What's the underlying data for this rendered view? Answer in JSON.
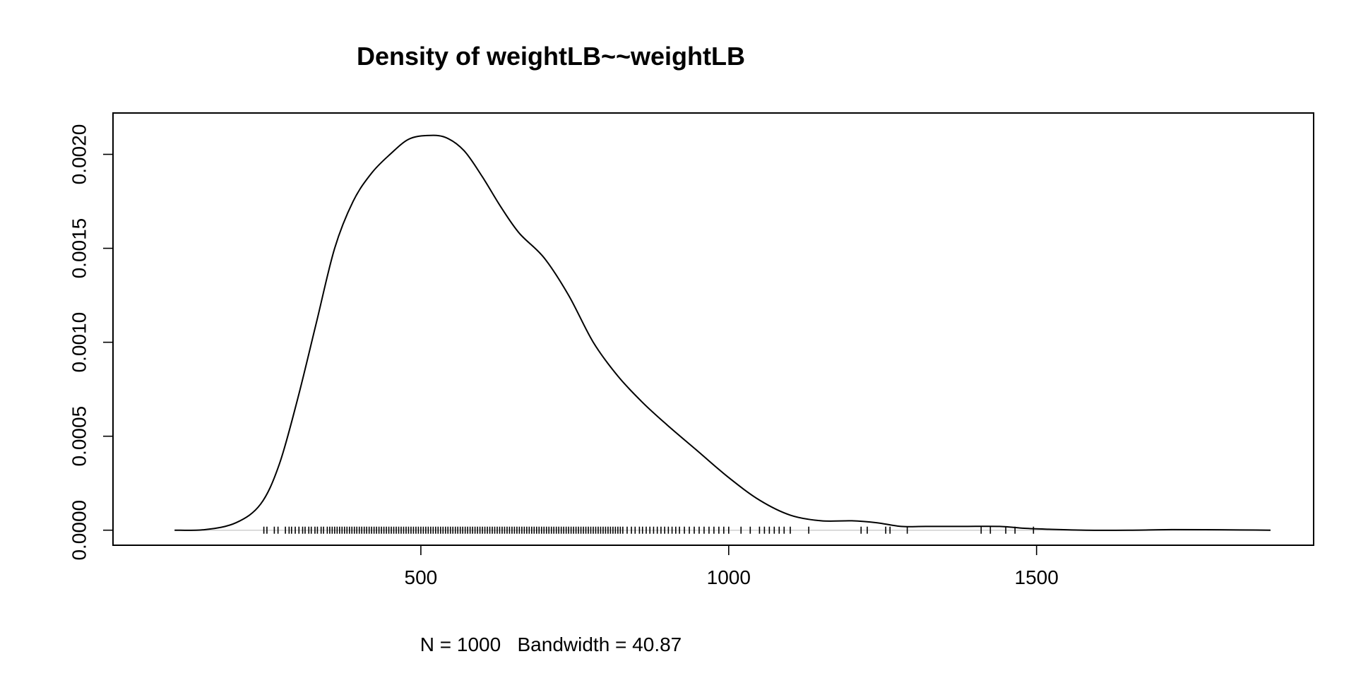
{
  "chart_data": {
    "type": "line",
    "title": "Density of weightLB~~weightLB",
    "xlabel": "N = 1000   Bandwidth = 40.87",
    "ylabel": "",
    "xlim": [
      0,
      1950
    ],
    "ylim": [
      -8e-05,
      0.00222
    ],
    "x_ticks": [
      500,
      1000,
      1500
    ],
    "x_tick_labels": [
      "500",
      "1000",
      "1500"
    ],
    "y_ticks": [
      0,
      0.0005,
      0.001,
      0.0015,
      0.002
    ],
    "y_tick_labels": [
      "0.0000",
      "0.0005",
      "0.0010",
      "0.0015",
      "0.0020"
    ],
    "grid": false,
    "legend": "none",
    "series": [
      {
        "x": [
          100,
          150,
          200,
          240,
          270,
          300,
          330,
          360,
          390,
          420,
          450,
          480,
          510,
          540,
          570,
          600,
          630,
          660,
          700,
          740,
          780,
          820,
          860,
          900,
          950,
          1000,
          1050,
          1100,
          1150,
          1200,
          1240,
          1280,
          1320,
          1380,
          1440,
          1480,
          1520,
          1580,
          1650,
          1720,
          1800,
          1880
        ],
        "y": [
          0.0,
          3e-06,
          4e-05,
          0.00014,
          0.00035,
          0.0007,
          0.0011,
          0.0015,
          0.00175,
          0.0019,
          0.002,
          0.00208,
          0.0021,
          0.00209,
          0.00202,
          0.00188,
          0.00172,
          0.00158,
          0.00145,
          0.00125,
          0.001,
          0.00082,
          0.00068,
          0.00056,
          0.00042,
          0.00028,
          0.00016,
          8e-05,
          5e-05,
          5e-05,
          4e-05,
          2e-05,
          2e-05,
          2e-05,
          2e-05,
          1e-05,
          5e-06,
          0.0,
          0.0,
          3e-06,
          2e-06,
          0.0
        ]
      }
    ],
    "rug": [
      245,
      250,
      262,
      268,
      280,
      286,
      290,
      296,
      302,
      308,
      312,
      318,
      322,
      328,
      332,
      338,
      342,
      348,
      352,
      356,
      360,
      364,
      368,
      372,
      376,
      380,
      384,
      388,
      392,
      396,
      400,
      404,
      408,
      412,
      416,
      420,
      424,
      428,
      432,
      436,
      440,
      444,
      448,
      452,
      456,
      460,
      464,
      468,
      472,
      476,
      480,
      484,
      488,
      492,
      496,
      500,
      504,
      508,
      512,
      516,
      520,
      524,
      528,
      532,
      536,
      540,
      544,
      548,
      552,
      556,
      560,
      564,
      568,
      572,
      576,
      580,
      584,
      588,
      592,
      596,
      600,
      604,
      608,
      612,
      616,
      620,
      624,
      628,
      632,
      636,
      640,
      644,
      648,
      652,
      656,
      660,
      664,
      668,
      672,
      676,
      680,
      684,
      688,
      692,
      696,
      700,
      704,
      708,
      712,
      716,
      720,
      724,
      728,
      732,
      736,
      740,
      744,
      748,
      752,
      756,
      760,
      764,
      768,
      772,
      776,
      780,
      784,
      788,
      792,
      796,
      800,
      804,
      808,
      812,
      816,
      820,
      824,
      828,
      835,
      842,
      848,
      855,
      860,
      866,
      872,
      878,
      884,
      890,
      896,
      902,
      908,
      914,
      920,
      928,
      936,
      944,
      952,
      960,
      968,
      976,
      984,
      992,
      1000,
      1020,
      1035,
      1050,
      1058,
      1066,
      1074,
      1082,
      1090,
      1100,
      1130,
      1215,
      1225,
      1255,
      1262,
      1290,
      1410,
      1425,
      1450,
      1465,
      1495
    ]
  }
}
